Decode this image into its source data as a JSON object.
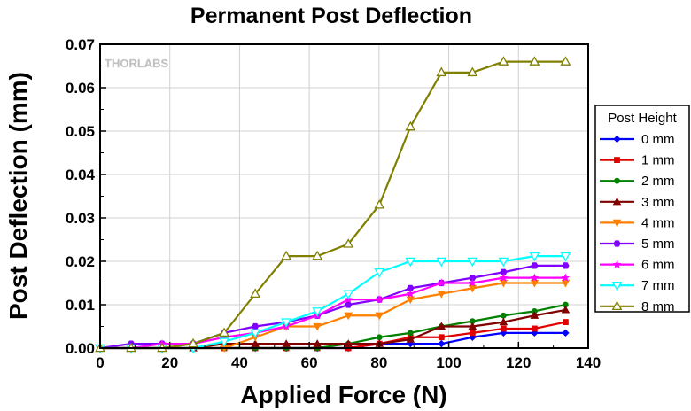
{
  "chart_data": {
    "type": "line",
    "title": "Permanent Post Deflection",
    "xlabel": "Applied Force (N)",
    "ylabel": "Post Deflection (mm)",
    "xlim": [
      0,
      140
    ],
    "ylim": [
      0,
      0.07
    ],
    "xticks": [
      "0",
      "20",
      "40",
      "60",
      "80",
      "100",
      "120",
      "140"
    ],
    "yticks": [
      "0.00",
      "0.01",
      "0.02",
      "0.03",
      "0.04",
      "0.05",
      "0.06",
      "0.07"
    ],
    "grid": true,
    "legend": {
      "title": "Post Height",
      "placement": "right"
    },
    "watermark": "THORLABS",
    "x": [
      0,
      8.9,
      17.8,
      26.7,
      35.6,
      44.5,
      53.4,
      62.3,
      71.2,
      80.1,
      89,
      97.9,
      106.8,
      115.7,
      124.6,
      133.5
    ],
    "series": [
      {
        "name": "0 mm",
        "color": "#0000ff",
        "marker": "diamond",
        "values": [
          0,
          0,
          0,
          0,
          0,
          0,
          0,
          0,
          0,
          0.001,
          0.001,
          0.001,
          0.0025,
          0.0035,
          0.0035,
          0.0035
        ]
      },
      {
        "name": "1 mm",
        "color": "#e00000",
        "marker": "square",
        "values": [
          0,
          0,
          0,
          0,
          0,
          0,
          0,
          0,
          0,
          0.001,
          0.0025,
          0.0025,
          0.0035,
          0.0045,
          0.0045,
          0.006
        ]
      },
      {
        "name": "2 mm",
        "color": "#008000",
        "marker": "circle",
        "values": [
          0,
          0,
          0,
          0,
          0,
          0,
          0,
          0,
          0.001,
          0.0025,
          0.0035,
          0.005,
          0.0062,
          0.0075,
          0.0085,
          0.01
        ]
      },
      {
        "name": "3 mm",
        "color": "#800000",
        "marker": "triangle-up",
        "values": [
          0,
          0,
          0,
          0,
          0.001,
          0.001,
          0.001,
          0.001,
          0.001,
          0.001,
          0.002,
          0.005,
          0.005,
          0.006,
          0.0075,
          0.0088
        ]
      },
      {
        "name": "4 mm",
        "color": "#ff8000",
        "marker": "triangle-down",
        "values": [
          0,
          0,
          0,
          0,
          0,
          0.0025,
          0.005,
          0.005,
          0.0075,
          0.0075,
          0.0112,
          0.0125,
          0.0138,
          0.015,
          0.015,
          0.015
        ]
      },
      {
        "name": "5 mm",
        "color": "#8000ff",
        "marker": "hexagon",
        "values": [
          0,
          0.001,
          0.001,
          0.001,
          0.0035,
          0.005,
          0.006,
          0.0075,
          0.01,
          0.0112,
          0.0138,
          0.015,
          0.0162,
          0.0175,
          0.019,
          0.019
        ]
      },
      {
        "name": "6 mm",
        "color": "#ff00ff",
        "marker": "star",
        "values": [
          0,
          0,
          0.001,
          0.001,
          0.0025,
          0.0035,
          0.005,
          0.0075,
          0.0112,
          0.0112,
          0.0125,
          0.015,
          0.015,
          0.0162,
          0.0162,
          0.0162
        ]
      },
      {
        "name": "7 mm",
        "color": "#00ffff",
        "marker": "triangle-down-open",
        "values": [
          0,
          0,
          0,
          0,
          0.0015,
          0.0035,
          0.006,
          0.0085,
          0.0125,
          0.0175,
          0.02,
          0.02,
          0.02,
          0.02,
          0.0212,
          0.0212
        ]
      },
      {
        "name": "8 mm",
        "color": "#808000",
        "marker": "triangle-up-open",
        "values": [
          0,
          0,
          0,
          0.001,
          0.0035,
          0.0125,
          0.0212,
          0.0212,
          0.024,
          0.033,
          0.051,
          0.0635,
          0.0635,
          0.066,
          0.066,
          0.066
        ]
      }
    ]
  }
}
